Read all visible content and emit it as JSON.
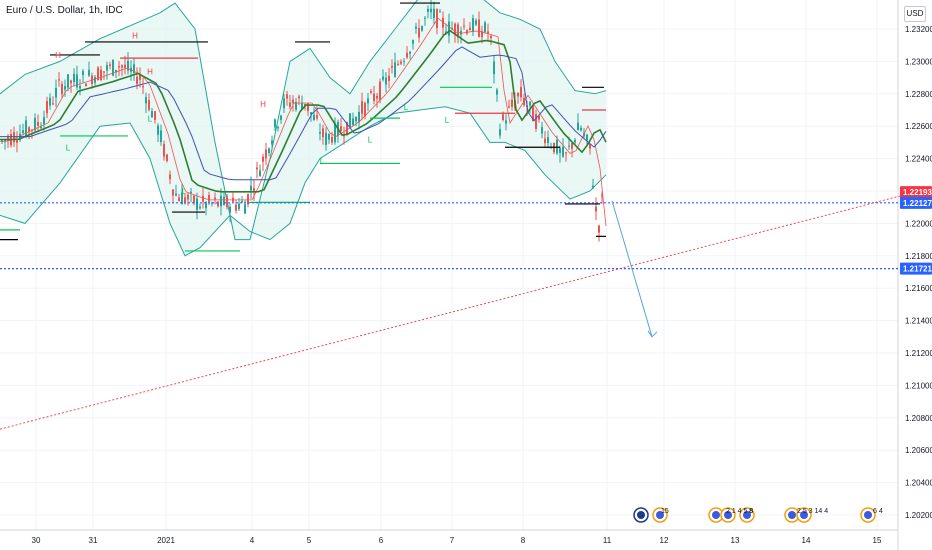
{
  "header": {
    "symbol_title": "Euro / U.S. Dollar, 1h, IDC",
    "currency_badge": "USD"
  },
  "chart_data": {
    "type": "candlestick",
    "title": "Euro / U.S. Dollar, 1h, IDC",
    "ylim": [
      1.2015,
      1.2338
    ],
    "y_ticks": [
      "1.23200",
      "1.23000",
      "1.22800",
      "1.22600",
      "1.22400",
      "1.22200",
      "1.22000",
      "1.21800",
      "1.21600",
      "1.21400",
      "1.21200",
      "1.21000",
      "1.20800",
      "1.20600",
      "1.20400",
      "1.20200"
    ],
    "x_ticks": [
      "30",
      "31",
      "2021",
      "4",
      "5",
      "6",
      "7",
      "8",
      "11",
      "12",
      "13",
      "14",
      "15"
    ],
    "price_tags": [
      {
        "label": "1.22193",
        "value": 1.22193,
        "color": "#f23645"
      },
      {
        "label": "1.22127",
        "value": 1.22127,
        "color": "#2962ff"
      },
      {
        "label": "1.21721",
        "value": 1.21721,
        "color": "#2962ff"
      }
    ],
    "horizontal_lines": [
      {
        "value": 1.22127,
        "color": "#2962ff",
        "style": "dotted"
      },
      {
        "value": 1.21721,
        "color": "#2962ff",
        "style": "dotted"
      }
    ],
    "trend_line": {
      "from": [
        0,
        1.2073
      ],
      "to": [
        932,
        1.2222
      ],
      "color": "#f23645",
      "style": "dotted"
    },
    "projection_arrow": {
      "from": [
        612,
        1.2214
      ],
      "to": [
        652,
        1.213
      ],
      "color": "#5ba3d9"
    },
    "hl_markers": [
      "H",
      "H",
      "H",
      "H",
      "H",
      "L",
      "L",
      "L",
      "L",
      "L",
      "L",
      "L"
    ],
    "event_labels": [
      "15",
      "2 1 4 5 8",
      "8",
      "2 5 3 14 4",
      "6 4"
    ]
  }
}
